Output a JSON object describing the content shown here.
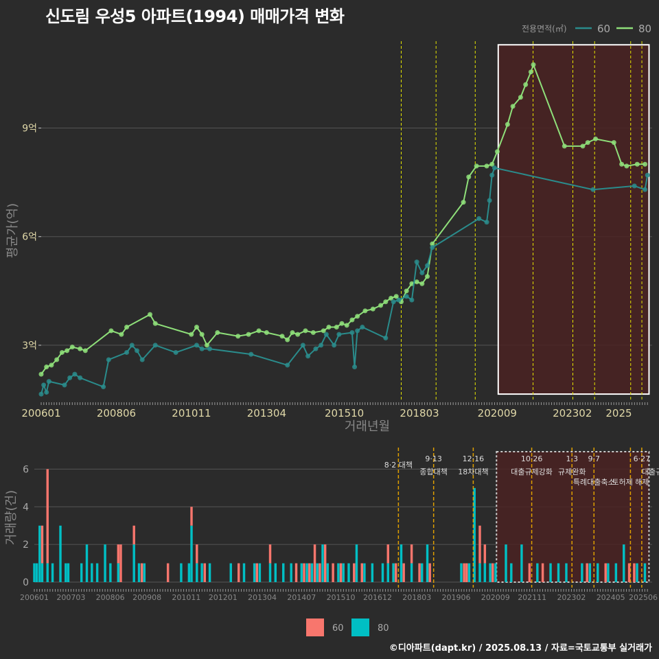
{
  "title": "신도림 우성5 아파트(1994) 매매가격 변화",
  "caption": "©디아파트(dapt.kr) / 2025.08.13 / 자료=국토교통부 실거래가",
  "legend_top": {
    "title": "전용면적(㎡)",
    "items": [
      {
        "label": "60",
        "color": "#2a8c8c"
      },
      {
        "label": "80",
        "color": "#8fe07a"
      }
    ]
  },
  "legend_bottom": {
    "items": [
      {
        "label": "60",
        "color": "#f8766d"
      },
      {
        "label": "80",
        "color": "#00bfc4"
      }
    ]
  },
  "colors": {
    "bg": "#2b2b2b",
    "grid": "#555555",
    "line60": "#2a8c8c",
    "line80": "#8fe07a",
    "policy": "#e6e600",
    "highlight": "#4a2222",
    "bar60": "#f8766d",
    "bar80": "#00bfc4"
  },
  "chart_data": [
    {
      "type": "line",
      "xlabel": "거래년월",
      "ylabel": "평균가(억)",
      "ylim": [
        1.5,
        11.4
      ],
      "x_ticks": [
        "200601",
        "200806",
        "201011",
        "201304",
        "201510",
        "201803",
        "202009",
        "202302",
        "2025"
      ],
      "y_ticks": [
        {
          "value": 3,
          "label": "3억"
        },
        {
          "value": 6,
          "label": "6억"
        },
        {
          "value": 9,
          "label": "9억"
        }
      ],
      "policy_dates": [
        2017.58,
        2018.7,
        2019.96,
        2021.82,
        2023.1,
        2023.8,
        2024.96,
        2025.32
      ],
      "highlight_range": [
        2020.7,
        2025.55
      ],
      "series": [
        {
          "name": "80",
          "x": [
            2006.0,
            2006.17,
            2006.33,
            2006.5,
            2006.67,
            2006.83,
            2007.0,
            2007.25,
            2007.42,
            2008.25,
            2008.58,
            2008.75,
            2009.5,
            2009.67,
            2010.83,
            2011.0,
            2011.17,
            2011.33,
            2011.67,
            2012.33,
            2012.67,
            2013.0,
            2013.25,
            2013.75,
            2013.92,
            2014.08,
            2014.25,
            2014.5,
            2014.75,
            2015.08,
            2015.25,
            2015.5,
            2015.67,
            2015.83,
            2016.0,
            2016.17,
            2016.42,
            2016.67,
            2016.92,
            2017.08,
            2017.25,
            2017.42,
            2017.58,
            2017.75,
            2017.92,
            2018.08,
            2018.25,
            2018.42,
            2018.58,
            2019.58,
            2019.75,
            2020.0,
            2020.33,
            2020.5,
            2020.67,
            2021.0,
            2021.17,
            2021.42,
            2021.58,
            2021.75,
            2021.83,
            2022.83,
            2023.42,
            2023.58,
            2023.83,
            2024.42,
            2024.67,
            2024.83,
            2025.17,
            2025.42
          ],
          "values": [
            2.2,
            2.4,
            2.45,
            2.6,
            2.8,
            2.85,
            2.95,
            2.9,
            2.85,
            3.4,
            3.3,
            3.5,
            3.85,
            3.6,
            3.3,
            3.5,
            3.3,
            3.0,
            3.35,
            3.25,
            3.3,
            3.4,
            3.35,
            3.25,
            3.15,
            3.35,
            3.3,
            3.4,
            3.35,
            3.4,
            3.5,
            3.5,
            3.6,
            3.55,
            3.7,
            3.8,
            3.95,
            4.0,
            4.1,
            4.2,
            4.3,
            4.35,
            4.2,
            4.5,
            4.7,
            4.75,
            4.7,
            4.9,
            5.8,
            6.95,
            7.65,
            7.95,
            7.95,
            8.0,
            8.35,
            9.1,
            9.6,
            9.85,
            10.2,
            10.55,
            10.75,
            8.5,
            8.5,
            8.6,
            8.7,
            8.6,
            8.0,
            7.95,
            8.0,
            8.0
          ]
        },
        {
          "name": "60",
          "x": [
            2006.0,
            2006.08,
            2006.17,
            2006.25,
            2006.75,
            2006.92,
            2007.08,
            2007.25,
            2008.0,
            2008.17,
            2008.75,
            2008.92,
            2009.08,
            2009.25,
            2009.67,
            2010.33,
            2011.0,
            2011.17,
            2011.42,
            2012.75,
            2013.92,
            2014.42,
            2014.58,
            2014.83,
            2015.0,
            2015.17,
            2015.42,
            2015.58,
            2016.0,
            2016.08,
            2016.17,
            2016.33,
            2017.08,
            2017.33,
            2017.5,
            2017.75,
            2017.92,
            2018.08,
            2018.25,
            2018.42,
            2018.58,
            2020.08,
            2020.33,
            2020.42,
            2020.5,
            2020.58,
            2023.75,
            2025.08,
            2025.42,
            2025.5
          ],
          "values": [
            1.65,
            1.9,
            1.7,
            2.0,
            1.9,
            2.1,
            2.2,
            2.1,
            1.85,
            2.6,
            2.8,
            3.0,
            2.85,
            2.6,
            3.0,
            2.8,
            3.0,
            2.9,
            2.9,
            2.75,
            2.45,
            3.0,
            2.7,
            2.9,
            3.0,
            3.3,
            3.0,
            3.3,
            3.35,
            2.4,
            3.4,
            3.5,
            3.2,
            4.2,
            4.25,
            4.35,
            4.25,
            5.3,
            5.0,
            5.2,
            5.7,
            6.5,
            6.4,
            7.0,
            7.7,
            7.9,
            7.3,
            7.4,
            7.3,
            7.7
          ]
        }
      ]
    },
    {
      "type": "bar",
      "ylabel": "거래량(건)",
      "ylim": [
        0,
        7
      ],
      "x_ticks": [
        "200601",
        "200703",
        "200806",
        "200908",
        "201011",
        "201201",
        "201304",
        "201407",
        "201510",
        "201612",
        "201803",
        "201906",
        "202009",
        "202111",
        "202302",
        "202405",
        "202506"
      ],
      "y_ticks": [
        0,
        2,
        4,
        6
      ],
      "policy_annotations": [
        {
          "date": 2017.58,
          "line1": "",
          "line2": "8·2 대책"
        },
        {
          "date": 2018.7,
          "line1": "9·13",
          "line2": "종합대책"
        },
        {
          "date": 2019.96,
          "line1": "12·16",
          "line2": "18차대책"
        },
        {
          "date": 2021.82,
          "line1": "10·26",
          "line2": "대출규제강화"
        },
        {
          "date": 2023.1,
          "line1": "1·3",
          "line2": "규제완화"
        },
        {
          "date": 2023.8,
          "line1": "9·7",
          "line2": "특례대출축소"
        },
        {
          "date": 2024.96,
          "line1": "",
          "line2": "토허제 해제"
        },
        {
          "date": 2025.32,
          "line1": "6·27",
          "line2": "대출규"
        }
      ],
      "highlight_range": [
        2020.7,
        2025.55
      ],
      "series": [
        {
          "name": "60",
          "x": [
            2006.17,
            2006.25,
            2006.42,
            2007.33,
            2008.5,
            2008.67,
            2008.75,
            2009.17,
            2009.42,
            2010.25,
            2011.0,
            2011.17,
            2011.42,
            2012.5,
            2013.08,
            2013.5,
            2013.67,
            2014.33,
            2014.58,
            2014.75,
            2014.92,
            2015.08,
            2015.25,
            2015.5,
            2015.75,
            2016.0,
            2016.17,
            2016.42,
            2017.25,
            2017.5,
            2017.75,
            2018.0,
            2018.25,
            2018.58,
            2019.67,
            2019.75,
            2020.0,
            2020.17,
            2020.33,
            2020.58,
            2021.75,
            2022.17,
            2022.75,
            2023.58,
            2024.17,
            2024.92,
            2025.08,
            2025.33
          ],
          "values": [
            0,
            2,
            5,
            0,
            0,
            1,
            2,
            1,
            1,
            1,
            1,
            1,
            1,
            1,
            1,
            1,
            0,
            1,
            1,
            1,
            2,
            1,
            2,
            1,
            1,
            0,
            1,
            1,
            1,
            1,
            1,
            1,
            1,
            1,
            1,
            1,
            0,
            2,
            1,
            1,
            1,
            1,
            0,
            1,
            1,
            1,
            1,
            0
          ]
        },
        {
          "name": "80",
          "x": [
            2006.0,
            2006.08,
            2006.17,
            2006.25,
            2006.42,
            2006.58,
            2006.83,
            2007.0,
            2007.08,
            2007.5,
            2007.67,
            2007.83,
            2008.0,
            2008.25,
            2008.42,
            2008.67,
            2009.17,
            2009.33,
            2009.5,
            2010.67,
            2010.92,
            2011.0,
            2011.17,
            2011.33,
            2011.58,
            2012.25,
            2012.67,
            2013.0,
            2013.17,
            2013.5,
            2013.67,
            2013.92,
            2014.17,
            2014.5,
            2014.67,
            2014.83,
            2015.0,
            2015.17,
            2015.33,
            2015.67,
            2015.83,
            2016.0,
            2016.25,
            2016.5,
            2016.75,
            2017.08,
            2017.25,
            2017.42,
            2017.67,
            2018.0,
            2018.33,
            2018.5,
            2019.58,
            2019.83,
            2020.0,
            2020.17,
            2020.33,
            2020.5,
            2020.67,
            2021.0,
            2021.17,
            2021.5,
            2022.0,
            2022.42,
            2022.67,
            2022.92,
            2023.42,
            2023.67,
            2023.92,
            2024.25,
            2024.5,
            2024.75,
            2025.17,
            2025.42
          ],
          "values": [
            1,
            1,
            3,
            1,
            1,
            1,
            3,
            1,
            1,
            1,
            2,
            1,
            1,
            2,
            1,
            1,
            2,
            1,
            1,
            1,
            1,
            3,
            1,
            1,
            1,
            1,
            1,
            1,
            1,
            1,
            1,
            1,
            1,
            1,
            1,
            1,
            1,
            2,
            1,
            1,
            1,
            1,
            2,
            1,
            1,
            1,
            1,
            1,
            2,
            1,
            1,
            2,
            1,
            1,
            5,
            1,
            1,
            1,
            1,
            2,
            1,
            2,
            1,
            1,
            1,
            1,
            1,
            1,
            1,
            1,
            1,
            2,
            1,
            1
          ]
        }
      ]
    }
  ]
}
